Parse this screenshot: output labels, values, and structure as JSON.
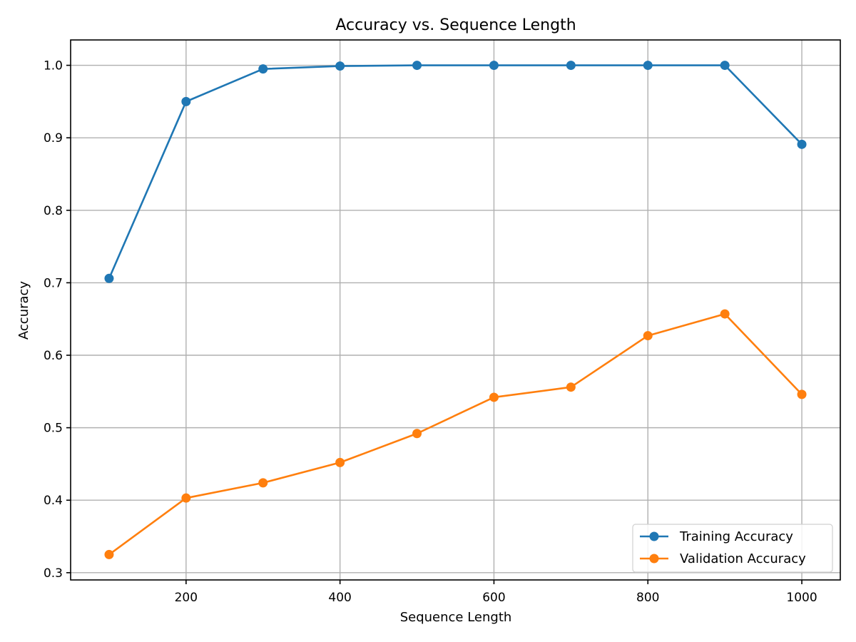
{
  "chart_data": {
    "type": "line",
    "title": "Accuracy vs. Sequence Length",
    "xlabel": "Sequence Length",
    "ylabel": "Accuracy",
    "xlim": [
      50,
      1050
    ],
    "ylim": [
      0.29,
      1.035
    ],
    "xticks": [
      200,
      400,
      600,
      800,
      1000
    ],
    "yticks": [
      0.3,
      0.4,
      0.5,
      0.6,
      0.7,
      0.8,
      0.9,
      1.0
    ],
    "ytick_labels": [
      "0.3",
      "0.4",
      "0.5",
      "0.6",
      "0.7",
      "0.8",
      "0.9",
      "1.0"
    ],
    "grid": true,
    "legend_position": "lower-right",
    "x": [
      100,
      200,
      300,
      400,
      500,
      600,
      700,
      800,
      900,
      1000
    ],
    "series": [
      {
        "name": "Training Accuracy",
        "color": "#1f77b4",
        "marker": "circle",
        "values": [
          0.706,
          0.95,
          0.995,
          0.999,
          1.0,
          1.0,
          1.0,
          1.0,
          1.0,
          0.891
        ]
      },
      {
        "name": "Validation Accuracy",
        "color": "#ff7f0e",
        "marker": "circle",
        "values": [
          0.325,
          0.403,
          0.424,
          0.452,
          0.492,
          0.542,
          0.556,
          0.627,
          0.657,
          0.546
        ]
      }
    ]
  }
}
